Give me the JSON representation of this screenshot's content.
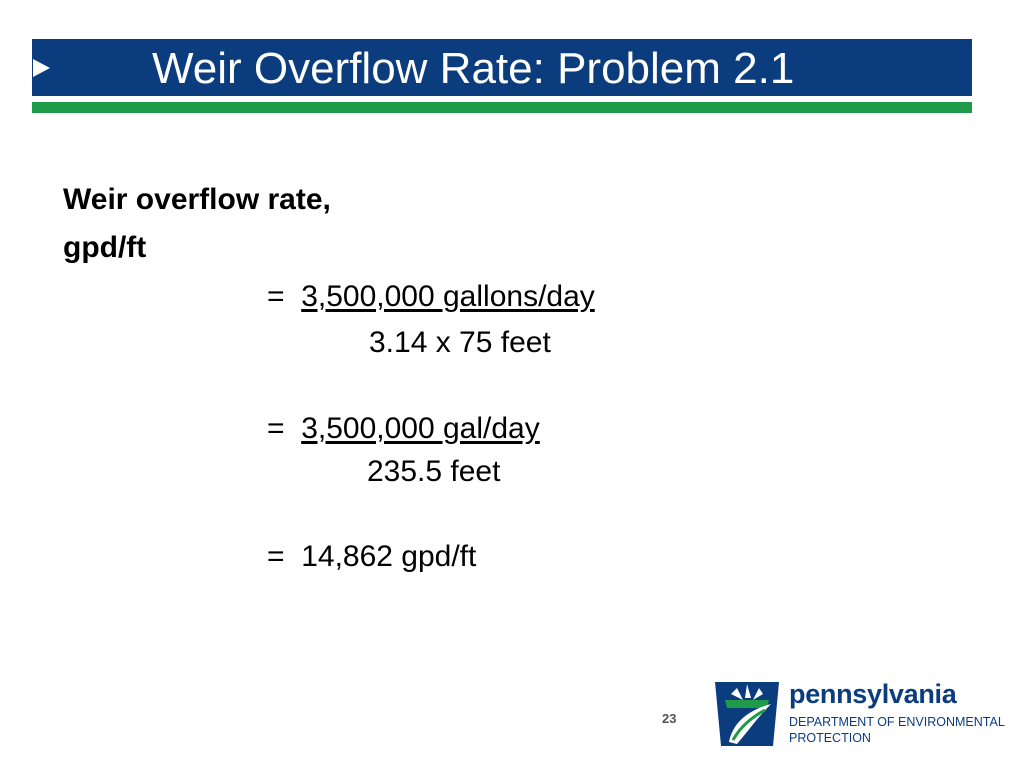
{
  "slide": {
    "title": "Weir Overflow Rate: Problem 2.1",
    "page_number": "23"
  },
  "content": {
    "label_line1": "Weir overflow rate,",
    "label_line2": "gpd/ft",
    "step1": {
      "equals": "=",
      "numerator": "3,500,000 gallons/day",
      "denominator": "3.14 x 75 feet"
    },
    "step2": {
      "equals": "=",
      "numerator": "3,500,000 gal/day",
      "denominator": "235.5 feet"
    },
    "step3": {
      "equals": "=",
      "result": "14,862 gpd/ft"
    }
  },
  "logo": {
    "name": "pennsylvania",
    "subtitle_line1": "DEPARTMENT OF ENVIRONMENTAL",
    "subtitle_line2": "PROTECTION",
    "colors": {
      "blue": "#0b3d7e",
      "green": "#1f9a48"
    }
  }
}
